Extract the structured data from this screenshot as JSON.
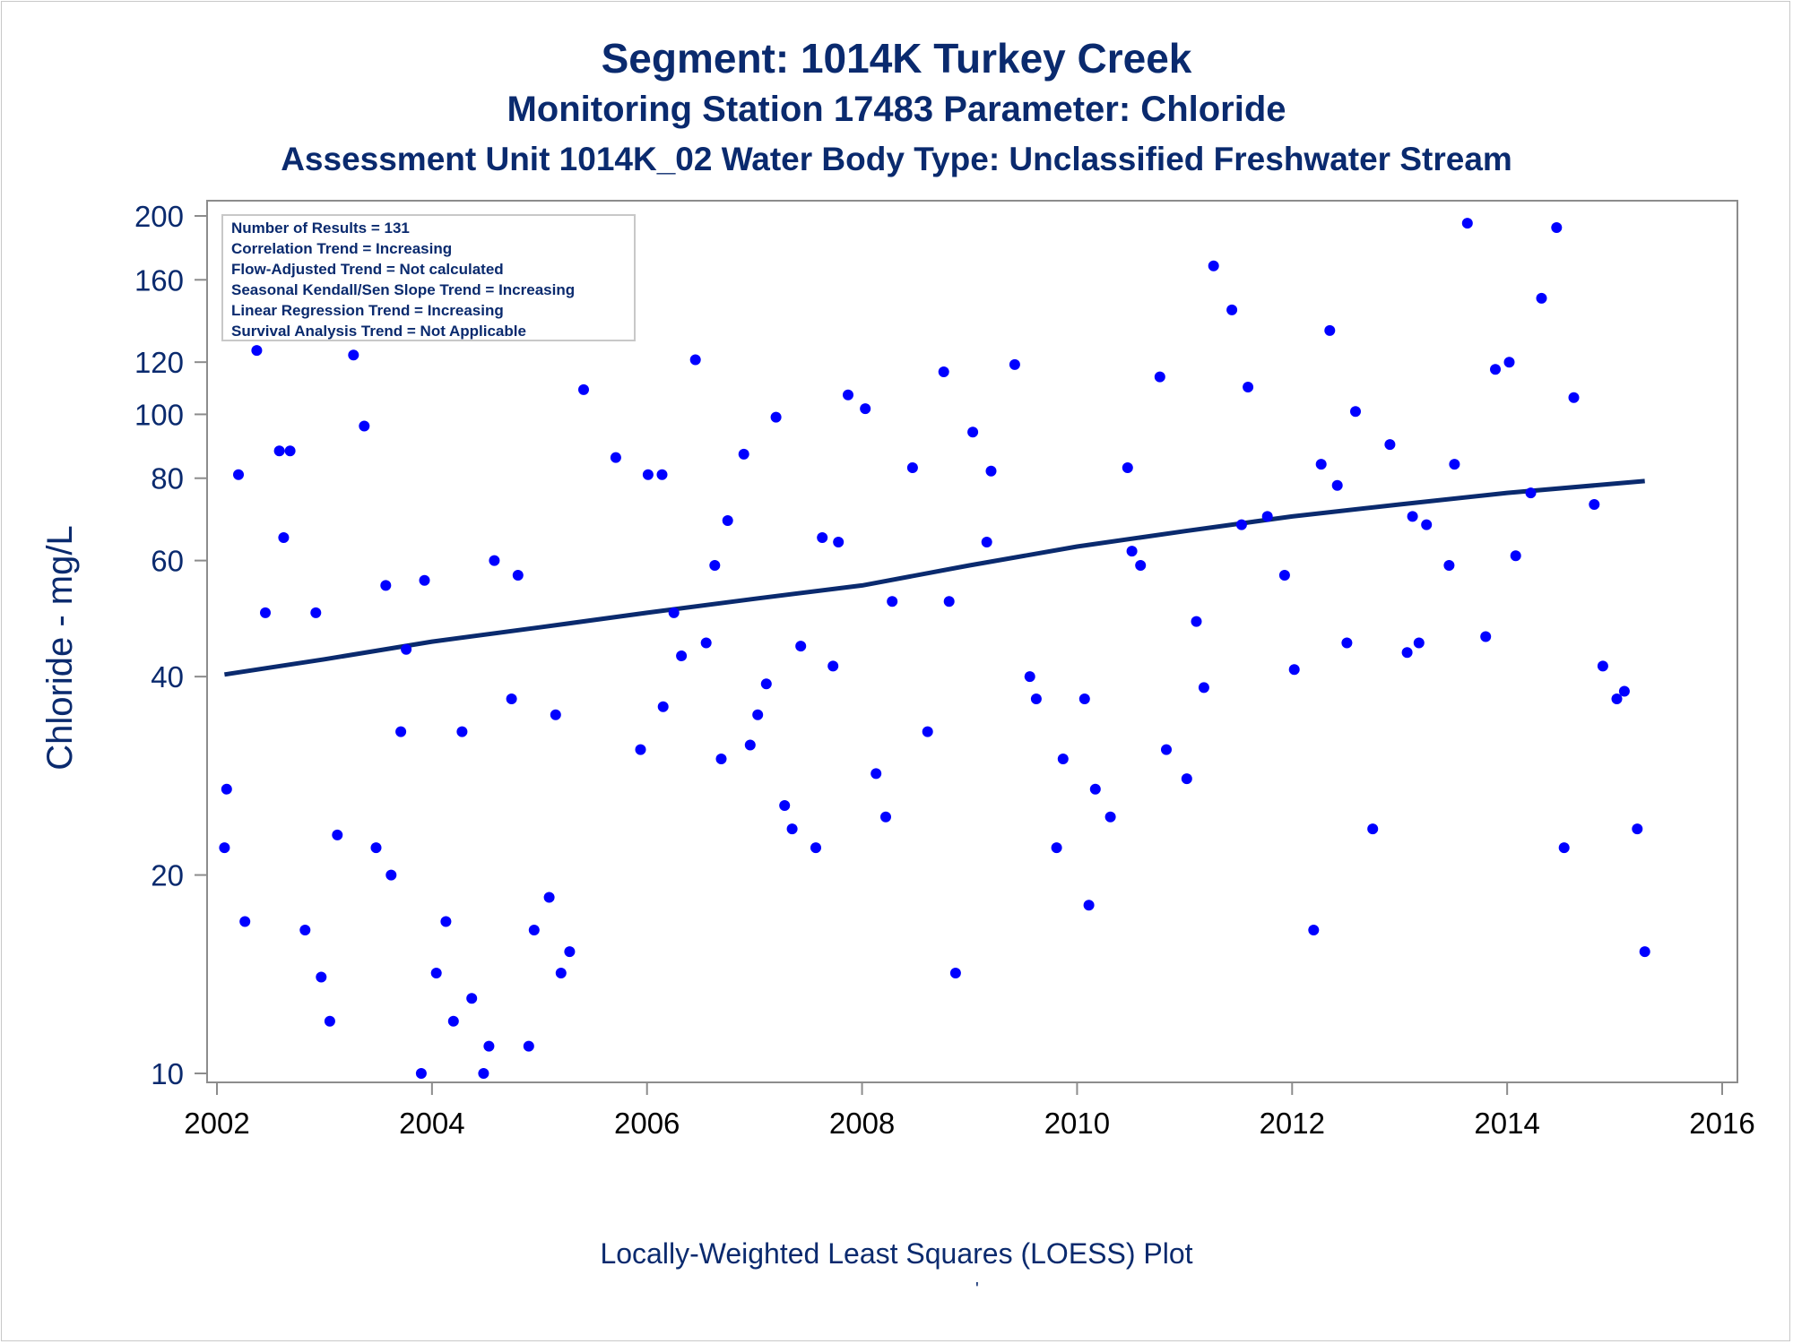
{
  "titles": {
    "line1": "Segment: 1014K  Turkey Creek",
    "line2": "Monitoring Station 17483 Parameter: Chloride",
    "line3": "Assessment Unit 1014K_02   Water Body Type: Unclassified Freshwater Stream"
  },
  "footnote": {
    "text": "Locally-Weighted Least Squares (LOESS) Plot",
    "mark": "'"
  },
  "colors": {
    "text": "#0a2a6e",
    "points": "#0000ff",
    "trend_line": "#0a2a6e",
    "axis": "#8c8c8c"
  },
  "chart_data": {
    "type": "scatter",
    "ylabel": "Chloride - mg/L",
    "xlabel": "",
    "yscale": "log",
    "xlim": [
      2002,
      2016
    ],
    "ylim": [
      9.6,
      212
    ],
    "xticks": [
      2002,
      2004,
      2006,
      2008,
      2010,
      2012,
      2014,
      2016
    ],
    "yticks": [
      10,
      20,
      40,
      60,
      80,
      100,
      120,
      160,
      200
    ],
    "grid": false,
    "legend": {
      "placement": "top-left",
      "lines": [
        "Number of Results = 131",
        "Correlation Trend = Increasing",
        "Flow-Adjusted Trend = Not calculated",
        "Seasonal Kendall/Sen Slope Trend = Increasing",
        "Linear Regression Trend = Increasing",
        "Survival Analysis Trend = Not Applicable"
      ]
    },
    "series": [
      {
        "type": "scatter",
        "points": [
          [
            2002.07,
            22
          ],
          [
            2002.09,
            27
          ],
          [
            2002.2,
            81
          ],
          [
            2002.26,
            17
          ],
          [
            2002.37,
            125
          ],
          [
            2002.45,
            50
          ],
          [
            2002.58,
            88
          ],
          [
            2002.62,
            65
          ],
          [
            2002.68,
            88
          ],
          [
            2002.82,
            16.5
          ],
          [
            2002.92,
            50
          ],
          [
            2002.97,
            14
          ],
          [
            2003.05,
            12
          ],
          [
            2003.12,
            23
          ],
          [
            2003.27,
            123
          ],
          [
            2003.37,
            96
          ],
          [
            2003.48,
            22
          ],
          [
            2003.57,
            55
          ],
          [
            2003.62,
            20
          ],
          [
            2003.71,
            33
          ],
          [
            2003.76,
            44
          ],
          [
            2003.9,
            10
          ],
          [
            2003.93,
            56
          ],
          [
            2004.04,
            14.2
          ],
          [
            2004.13,
            17
          ],
          [
            2004.2,
            12
          ],
          [
            2004.28,
            33
          ],
          [
            2004.37,
            13
          ],
          [
            2004.48,
            10
          ],
          [
            2004.53,
            11
          ],
          [
            2004.58,
            60
          ],
          [
            2004.74,
            37
          ],
          [
            2004.8,
            57
          ],
          [
            2004.9,
            11
          ],
          [
            2004.95,
            16.5
          ],
          [
            2005.09,
            18.5
          ],
          [
            2005.15,
            35
          ],
          [
            2005.2,
            14.2
          ],
          [
            2005.28,
            15.3
          ],
          [
            2005.41,
            109
          ],
          [
            2005.71,
            86
          ],
          [
            2005.94,
            31
          ],
          [
            2006.01,
            81
          ],
          [
            2006.14,
            81
          ],
          [
            2006.15,
            36
          ],
          [
            2006.25,
            50
          ],
          [
            2006.32,
            43
          ],
          [
            2006.45,
            121
          ],
          [
            2006.55,
            45
          ],
          [
            2006.63,
            59
          ],
          [
            2006.69,
            30
          ],
          [
            2006.75,
            69
          ],
          [
            2006.9,
            87
          ],
          [
            2006.96,
            31.5
          ],
          [
            2007.03,
            35
          ],
          [
            2007.11,
            39
          ],
          [
            2007.2,
            99
          ],
          [
            2007.28,
            25.5
          ],
          [
            2007.35,
            23.5
          ],
          [
            2007.43,
            44.5
          ],
          [
            2007.57,
            22
          ],
          [
            2007.63,
            65
          ],
          [
            2007.73,
            41.5
          ],
          [
            2007.78,
            64
          ],
          [
            2007.87,
            107
          ],
          [
            2008.03,
            102
          ],
          [
            2008.13,
            28.5
          ],
          [
            2008.22,
            24.5
          ],
          [
            2008.28,
            52
          ],
          [
            2008.47,
            83
          ],
          [
            2008.61,
            33
          ],
          [
            2008.76,
            116
          ],
          [
            2008.81,
            52
          ],
          [
            2008.87,
            14.2
          ],
          [
            2009.03,
            94
          ],
          [
            2009.16,
            64
          ],
          [
            2009.2,
            82
          ],
          [
            2009.42,
            119
          ],
          [
            2009.56,
            40
          ],
          [
            2009.62,
            37
          ],
          [
            2009.81,
            22
          ],
          [
            2009.87,
            30
          ],
          [
            2010.07,
            37
          ],
          [
            2010.11,
            18
          ],
          [
            2010.17,
            27
          ],
          [
            2010.31,
            24.5
          ],
          [
            2010.47,
            83
          ],
          [
            2010.51,
            62
          ],
          [
            2010.59,
            59
          ],
          [
            2010.77,
            114
          ],
          [
            2010.83,
            31
          ],
          [
            2011.02,
            28
          ],
          [
            2011.11,
            48.5
          ],
          [
            2011.18,
            38.5
          ],
          [
            2011.27,
            168
          ],
          [
            2011.44,
            144
          ],
          [
            2011.53,
            68
          ],
          [
            2011.59,
            110
          ],
          [
            2011.77,
            70
          ],
          [
            2011.93,
            57
          ],
          [
            2012.02,
            41
          ],
          [
            2012.2,
            16.5
          ],
          [
            2012.27,
            84
          ],
          [
            2012.35,
            134
          ],
          [
            2012.42,
            78
          ],
          [
            2012.51,
            45
          ],
          [
            2012.59,
            101
          ],
          [
            2012.75,
            23.5
          ],
          [
            2012.91,
            90
          ],
          [
            2013.07,
            43.5
          ],
          [
            2013.12,
            70
          ],
          [
            2013.18,
            45
          ],
          [
            2013.25,
            68
          ],
          [
            2013.46,
            59
          ],
          [
            2013.51,
            84
          ],
          [
            2013.63,
            195
          ],
          [
            2013.8,
            46
          ],
          [
            2013.89,
            117
          ],
          [
            2014.02,
            120
          ],
          [
            2014.08,
            61
          ],
          [
            2014.22,
            76
          ],
          [
            2014.32,
            150
          ],
          [
            2014.46,
            192
          ],
          [
            2014.53,
            22
          ],
          [
            2014.62,
            106
          ],
          [
            2014.81,
            73
          ],
          [
            2014.89,
            41.5
          ],
          [
            2015.02,
            37
          ],
          [
            2015.09,
            38
          ],
          [
            2015.21,
            23.5
          ],
          [
            2015.28,
            15.3
          ]
        ]
      },
      {
        "type": "line",
        "name": "LOESS",
        "points": [
          [
            2002.07,
            40.3
          ],
          [
            2003,
            42.5
          ],
          [
            2004,
            45.2
          ],
          [
            2005,
            47.5
          ],
          [
            2006,
            50.0
          ],
          [
            2007,
            52.5
          ],
          [
            2008,
            55.0
          ],
          [
            2009,
            59.0
          ],
          [
            2010,
            63.0
          ],
          [
            2011,
            66.5
          ],
          [
            2012,
            70.0
          ],
          [
            2013,
            73.0
          ],
          [
            2014,
            76.0
          ],
          [
            2015.28,
            79.2
          ]
        ]
      }
    ]
  }
}
